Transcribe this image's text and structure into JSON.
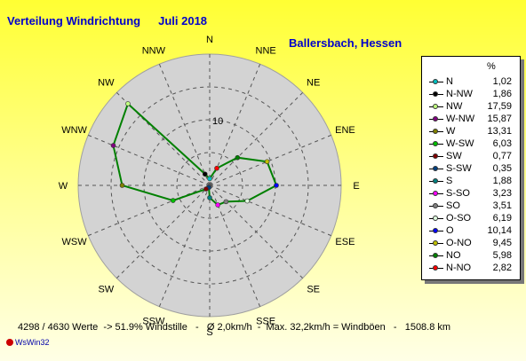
{
  "title": "Verteilung Windrichtung",
  "month": "Juli 2018",
  "location": "Ballersbach, Hessen",
  "legend_unit": "%",
  "footer": "4298 / 4630 Werte  -> 51.9% Windstille   -   Ø 2,0km/h  -  Max. 32,2km/h = Windböen   -   1508.8 km",
  "brand": "WsWin32",
  "colors": {
    "series": "#008000",
    "background": "#ffff33",
    "rose_fill": "#d3d3d3",
    "text_blue": "#0000cc"
  },
  "chart_data": {
    "type": "radar",
    "rings": [
      5,
      10,
      15,
      20
    ],
    "r_max": 20,
    "ring_label_shown": "10",
    "directions": [
      "N",
      "NNE",
      "NE",
      "ENE",
      "E",
      "ESE",
      "SE",
      "SSE",
      "S",
      "SSW",
      "SW",
      "WSW",
      "W",
      "WNW",
      "NW",
      "NNW"
    ],
    "values": {
      "N": 1.02,
      "NNE": 2.82,
      "NE": 5.98,
      "ENE": 9.45,
      "E": 10.14,
      "ESE": 6.19,
      "SE": 3.51,
      "SSE": 3.23,
      "S": 1.88,
      "SSW": 0.35,
      "SW": 0.77,
      "WSW": 6.03,
      "W": 13.31,
      "WNW": 15.87,
      "NW": 17.59,
      "NNW": 1.86
    },
    "series": [
      {
        "dir": "N",
        "value": 1.02,
        "color": "#00c0c0"
      },
      {
        "dir": "N-NW",
        "value": 1.86,
        "color": "#000000"
      },
      {
        "dir": "NW",
        "value": 17.59,
        "color": "#c0ff80"
      },
      {
        "dir": "W-NW",
        "value": 15.87,
        "color": "#800080"
      },
      {
        "dir": "W",
        "value": 13.31,
        "color": "#808000"
      },
      {
        "dir": "W-SW",
        "value": 6.03,
        "color": "#00c000"
      },
      {
        "dir": "SW",
        "value": 0.77,
        "color": "#800000"
      },
      {
        "dir": "S-SW",
        "value": 0.35,
        "color": "#004080"
      },
      {
        "dir": "S",
        "value": 1.88,
        "color": "#008080"
      },
      {
        "dir": "S-SO",
        "value": 3.23,
        "color": "#ff00ff"
      },
      {
        "dir": "SO",
        "value": 3.51,
        "color": "#808080"
      },
      {
        "dir": "O-SO",
        "value": 6.19,
        "color": "#e0ffe0"
      },
      {
        "dir": "O",
        "value": 10.14,
        "color": "#0000ff"
      },
      {
        "dir": "O-NO",
        "value": 9.45,
        "color": "#c0c000"
      },
      {
        "dir": "NO",
        "value": 5.98,
        "color": "#008000"
      },
      {
        "dir": "N-NO",
        "value": 2.82,
        "color": "#ff0000"
      }
    ]
  }
}
